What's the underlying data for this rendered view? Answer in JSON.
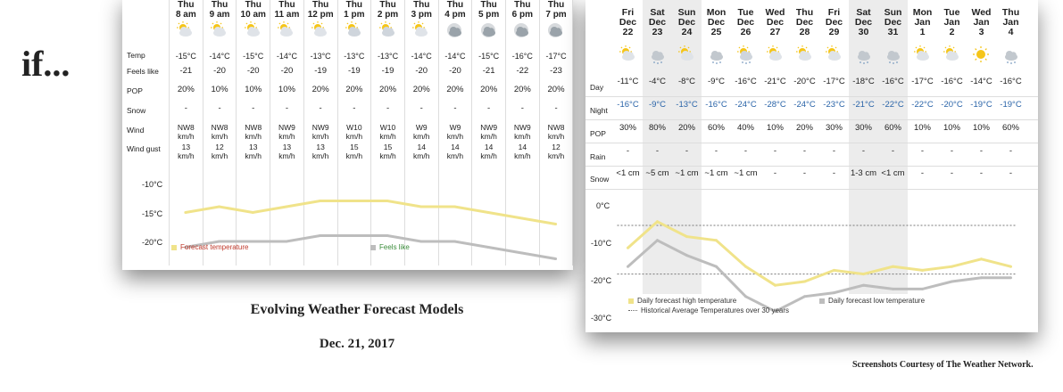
{
  "slide": {
    "title": "if...",
    "caption_title": "Evolving Weather Forecast Models",
    "caption_date": "Dec. 21, 2017",
    "credit": "Screenshots Courtesy of The Weather Network."
  },
  "hourly": {
    "labels": {
      "temp": "Temp",
      "feels": "Feels like",
      "pop": "POP",
      "snow": "Snow",
      "wind": "Wind",
      "gust": "Wind gust"
    },
    "columns": [
      {
        "day": "Thu",
        "time": "8 am",
        "icon": "partly-sunny-icon",
        "temp": "-15°C",
        "feels": "-21",
        "pop": "20%",
        "snow": "-",
        "wind": "NW8 km/h",
        "gust": "13 km/h"
      },
      {
        "day": "Thu",
        "time": "9 am",
        "icon": "partly-sunny-icon",
        "temp": "-14°C",
        "feels": "-20",
        "pop": "10%",
        "snow": "-",
        "wind": "NW8 km/h",
        "gust": "12 km/h"
      },
      {
        "day": "Thu",
        "time": "10 am",
        "icon": "partly-sunny-icon",
        "temp": "-15°C",
        "feels": "-20",
        "pop": "10%",
        "snow": "-",
        "wind": "NW8 km/h",
        "gust": "13 km/h"
      },
      {
        "day": "Thu",
        "time": "11 am",
        "icon": "partly-sunny-icon",
        "temp": "-14°C",
        "feels": "-20",
        "pop": "10%",
        "snow": "-",
        "wind": "NW9 km/h",
        "gust": "13 km/h"
      },
      {
        "day": "Thu",
        "time": "12 pm",
        "icon": "partly-sunny-icon",
        "temp": "-13°C",
        "feels": "-19",
        "pop": "20%",
        "snow": "-",
        "wind": "NW9 km/h",
        "gust": "13 km/h"
      },
      {
        "day": "Thu",
        "time": "1 pm",
        "icon": "partly-cloudy-icon",
        "temp": "-13°C",
        "feels": "-19",
        "pop": "20%",
        "snow": "-",
        "wind": "W10 km/h",
        "gust": "15 km/h"
      },
      {
        "day": "Thu",
        "time": "2 pm",
        "icon": "partly-cloudy-icon",
        "temp": "-13°C",
        "feels": "-19",
        "pop": "20%",
        "snow": "-",
        "wind": "W10 km/h",
        "gust": "15 km/h"
      },
      {
        "day": "Thu",
        "time": "3 pm",
        "icon": "partly-sunny-icon",
        "temp": "-14°C",
        "feels": "-20",
        "pop": "20%",
        "snow": "-",
        "wind": "W9 km/h",
        "gust": "14 km/h"
      },
      {
        "day": "Thu",
        "time": "4 pm",
        "icon": "cloudy-icon",
        "temp": "-14°C",
        "feels": "-20",
        "pop": "20%",
        "snow": "-",
        "wind": "W9 km/h",
        "gust": "14 km/h"
      },
      {
        "day": "Thu",
        "time": "5 pm",
        "icon": "cloudy-icon",
        "temp": "-15°C",
        "feels": "-21",
        "pop": "20%",
        "snow": "-",
        "wind": "NW9 km/h",
        "gust": "14 km/h"
      },
      {
        "day": "Thu",
        "time": "6 pm",
        "icon": "cloudy-icon",
        "temp": "-16°C",
        "feels": "-22",
        "pop": "20%",
        "snow": "-",
        "wind": "NW9 km/h",
        "gust": "14 km/h"
      },
      {
        "day": "Thu",
        "time": "7 pm",
        "icon": "cloudy-icon",
        "temp": "-17°C",
        "feels": "-23",
        "pop": "20%",
        "snow": "-",
        "wind": "NW8 km/h",
        "gust": "12 km/h"
      }
    ],
    "chart": {
      "y_ticks": [
        "-10°C",
        "-15°C",
        "-20°C"
      ],
      "legend_temp": "Forecast temperature",
      "legend_feels": "Feels like",
      "temp_color": "#f0e38a",
      "feels_color": "#bdbdbd"
    }
  },
  "daily": {
    "labels": {
      "day": "Day",
      "night": "Night",
      "pop": "POP",
      "rain": "Rain",
      "snow": "Snow"
    },
    "columns": [
      {
        "dow": "Fri",
        "month": "Dec",
        "date": "22",
        "icon": "partly-sunny-icon",
        "day": "-11°C",
        "night": "-16°C",
        "pop": "30%",
        "rain": "-",
        "snow": "<1 cm",
        "weekend": false
      },
      {
        "dow": "Sat",
        "month": "Dec",
        "date": "23",
        "icon": "snow-cloud-icon",
        "day": "-4°C",
        "night": "-9°C",
        "pop": "80%",
        "rain": "-",
        "snow": "~5 cm",
        "weekend": true
      },
      {
        "dow": "Sun",
        "month": "Dec",
        "date": "24",
        "icon": "partly-sunny-icon",
        "day": "-8°C",
        "night": "-13°C",
        "pop": "20%",
        "rain": "-",
        "snow": "~1 cm",
        "weekend": true
      },
      {
        "dow": "Mon",
        "month": "Dec",
        "date": "25",
        "icon": "snow-cloud-icon",
        "day": "-9°C",
        "night": "-16°C",
        "pop": "60%",
        "rain": "-",
        "snow": "~1 cm",
        "weekend": false
      },
      {
        "dow": "Tue",
        "month": "Dec",
        "date": "26",
        "icon": "flurries-icon",
        "day": "-16°C",
        "night": "-24°C",
        "pop": "40%",
        "rain": "-",
        "snow": "~1 cm",
        "weekend": false
      },
      {
        "dow": "Wed",
        "month": "Dec",
        "date": "27",
        "icon": "partly-sunny-icon",
        "day": "-21°C",
        "night": "-28°C",
        "pop": "10%",
        "rain": "-",
        "snow": "-",
        "weekend": false
      },
      {
        "dow": "Thu",
        "month": "Dec",
        "date": "28",
        "icon": "partly-sunny-icon",
        "day": "-20°C",
        "night": "-24°C",
        "pop": "20%",
        "rain": "-",
        "snow": "-",
        "weekend": false
      },
      {
        "dow": "Fri",
        "month": "Dec",
        "date": "29",
        "icon": "partly-sunny-icon",
        "day": "-17°C",
        "night": "-23°C",
        "pop": "30%",
        "rain": "-",
        "snow": "-",
        "weekend": false
      },
      {
        "dow": "Sat",
        "month": "Dec",
        "date": "30",
        "icon": "snow-cloud-icon",
        "day": "-18°C",
        "night": "-21°C",
        "pop": "30%",
        "rain": "-",
        "snow": "1-3 cm",
        "weekend": true
      },
      {
        "dow": "Sun",
        "month": "Dec",
        "date": "31",
        "icon": "snow-cloud-icon",
        "day": "-16°C",
        "night": "-22°C",
        "pop": "60%",
        "rain": "-",
        "snow": "<1 cm",
        "weekend": true
      },
      {
        "dow": "Mon",
        "month": "Jan",
        "date": "1",
        "icon": "partly-sunny-icon",
        "day": "-17°C",
        "night": "-22°C",
        "pop": "10%",
        "rain": "-",
        "snow": "-",
        "weekend": false
      },
      {
        "dow": "Tue",
        "month": "Jan",
        "date": "2",
        "icon": "partly-sunny-icon",
        "day": "-16°C",
        "night": "-20°C",
        "pop": "10%",
        "rain": "-",
        "snow": "-",
        "weekend": false
      },
      {
        "dow": "Wed",
        "month": "Jan",
        "date": "3",
        "icon": "sunny-icon",
        "day": "-14°C",
        "night": "-19°C",
        "pop": "10%",
        "rain": "-",
        "snow": "-",
        "weekend": false
      },
      {
        "dow": "Thu",
        "month": "Jan",
        "date": "4",
        "icon": "snow-cloud-icon",
        "day": "-16°C",
        "night": "-19°C",
        "pop": "60%",
        "rain": "-",
        "snow": "-",
        "weekend": false
      }
    ],
    "chart": {
      "y_ticks": [
        "0°C",
        "-10°C",
        "-20°C",
        "-30°C"
      ],
      "legend_high": "Daily forecast high temperature",
      "legend_hist": "Historical Average Temperatures over 30 years",
      "legend_low": "Daily forecast low temperature",
      "high_color": "#f0e38a",
      "low_color": "#bdbdbd"
    }
  },
  "chart_data": [
    {
      "type": "line",
      "categories": [
        "8 am",
        "9 am",
        "10 am",
        "11 am",
        "12 pm",
        "1 pm",
        "2 pm",
        "3 pm",
        "4 pm",
        "5 pm",
        "6 pm",
        "7 pm"
      ],
      "series": [
        {
          "name": "Forecast temperature",
          "values": [
            -15,
            -14,
            -15,
            -14,
            -13,
            -13,
            -13,
            -14,
            -14,
            -15,
            -16,
            -17
          ]
        },
        {
          "name": "Feels like",
          "values": [
            -21,
            -20,
            -20,
            -20,
            -19,
            -19,
            -19,
            -20,
            -20,
            -21,
            -22,
            -23
          ]
        }
      ],
      "y_ticks": [
        "-10°C",
        "-15°C",
        "-20°C"
      ],
      "legend": "bottom"
    },
    {
      "type": "line",
      "categories": [
        "Dec 22",
        "Dec 23",
        "Dec 24",
        "Dec 25",
        "Dec 26",
        "Dec 27",
        "Dec 28",
        "Dec 29",
        "Dec 30",
        "Dec 31",
        "Jan 1",
        "Jan 2",
        "Jan 3",
        "Jan 4"
      ],
      "series": [
        {
          "name": "Daily forecast high temperature",
          "values": [
            -11,
            -4,
            -8,
            -9,
            -16,
            -21,
            -20,
            -17,
            -18,
            -16,
            -17,
            -16,
            -14,
            -16
          ]
        },
        {
          "name": "Daily forecast low temperature",
          "values": [
            -16,
            -9,
            -13,
            -16,
            -24,
            -28,
            -24,
            -23,
            -21,
            -22,
            -22,
            -20,
            -19,
            -19
          ]
        },
        {
          "name": "Historical Average Temperatures over 30 years",
          "values": [
            -5,
            -5,
            -5,
            -5,
            -5,
            -5,
            -5,
            -5,
            -5,
            -5,
            -5,
            -5,
            -5,
            -5
          ]
        },
        {
          "name": "Historical Average Temperatures over 30 years",
          "values": [
            -18,
            -18,
            -18,
            -18,
            -18,
            -18,
            -18,
            -18,
            -18,
            -18,
            -18,
            -18,
            -18,
            -18
          ]
        }
      ],
      "y_ticks": [
        "0°C",
        "-10°C",
        "-20°C",
        "-30°C"
      ],
      "ylim": [
        -30,
        0
      ],
      "legend": "bottom"
    }
  ]
}
